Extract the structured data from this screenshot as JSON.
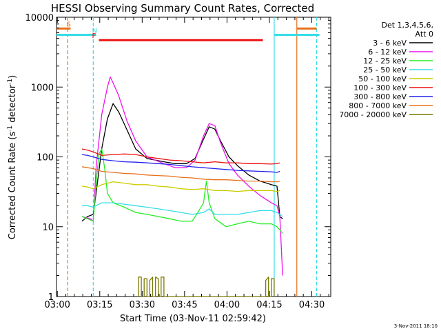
{
  "chart_data": {
    "type": "line",
    "title": "HESSI Observing Summary Count Rates, Corrected",
    "xlabel": "Start Time (03-Nov-11 02:59:42)",
    "ylabel_main": "Corrected Count Rate (s",
    "ylabel_sup1": "-1",
    "ylabel_mid": " detector",
    "ylabel_sup2": "-1",
    "ylabel_end": ")",
    "yscale": "log",
    "ylim": [
      1,
      10000
    ],
    "xlim_minutes": [
      0,
      97
    ],
    "x_tick_labels": [
      "03:00",
      "03:15",
      "03:30",
      "03:45",
      "04:00",
      "04:15",
      "04:30"
    ],
    "y_tick_labels": [
      "1",
      "10",
      "100",
      "1000",
      "10000"
    ],
    "legend_header": [
      "Det 1,3,4,5,6,",
      "Att 0"
    ],
    "legend_position": "right",
    "timestamp": "3-Nov-2011 18:10",
    "flags": [
      {
        "label": "S",
        "color": "#e8701a",
        "segments": [
          [
            0,
            5
          ],
          [
            85,
            92
          ]
        ],
        "level": 6900
      },
      {
        "label": "N",
        "color": "#33dde6",
        "segments": [
          [
            0,
            14
          ],
          [
            77,
            93
          ]
        ],
        "level": 5600
      },
      {
        "label": "F",
        "color": "#ee1111",
        "segments": [
          [
            15,
            73
          ]
        ],
        "level": 4700
      }
    ],
    "vlines": [
      {
        "minute": 4,
        "color": "#e8701a",
        "style": "dashed"
      },
      {
        "minute": 13,
        "color": "#33dde6",
        "style": "dashed"
      },
      {
        "minute": 77,
        "color": "#33dde6",
        "style": "solid"
      },
      {
        "minute": 85,
        "color": "#e8701a",
        "style": "solid"
      },
      {
        "minute": 92,
        "color": "#33dde6",
        "style": "dashed"
      }
    ],
    "series": [
      {
        "name": "3 - 6 keV",
        "color": "#000000",
        "points": [
          [
            9,
            12
          ],
          [
            11,
            14
          ],
          [
            13,
            15
          ],
          [
            14,
            30
          ],
          [
            16,
            130
          ],
          [
            18,
            350
          ],
          [
            20,
            580
          ],
          [
            22,
            440
          ],
          [
            25,
            240
          ],
          [
            28,
            130
          ],
          [
            32,
            95
          ],
          [
            38,
            85
          ],
          [
            42,
            80
          ],
          [
            46,
            80
          ],
          [
            49,
            95
          ],
          [
            52,
            180
          ],
          [
            54,
            270
          ],
          [
            56,
            250
          ],
          [
            58,
            170
          ],
          [
            61,
            100
          ],
          [
            64,
            75
          ],
          [
            68,
            55
          ],
          [
            72,
            45
          ],
          [
            76,
            40
          ],
          [
            78,
            38
          ],
          [
            79,
            14
          ],
          [
            80,
            13
          ]
        ]
      },
      {
        "name": "6 - 12 keV",
        "color": "#ee11ee",
        "points": [
          [
            9,
            14
          ],
          [
            12,
            13
          ],
          [
            13,
            12
          ],
          [
            14,
            70
          ],
          [
            16,
            400
          ],
          [
            18,
            1000
          ],
          [
            19,
            1400
          ],
          [
            20,
            1150
          ],
          [
            22,
            750
          ],
          [
            25,
            320
          ],
          [
            28,
            170
          ],
          [
            32,
            100
          ],
          [
            38,
            80
          ],
          [
            42,
            70
          ],
          [
            46,
            70
          ],
          [
            49,
            90
          ],
          [
            52,
            200
          ],
          [
            54,
            300
          ],
          [
            56,
            280
          ],
          [
            58,
            160
          ],
          [
            61,
            80
          ],
          [
            64,
            55
          ],
          [
            68,
            38
          ],
          [
            72,
            28
          ],
          [
            76,
            22
          ],
          [
            78,
            20
          ],
          [
            79,
            14
          ],
          [
            80,
            2
          ]
        ]
      },
      {
        "name": "12 - 25 keV",
        "color": "#22ee22",
        "points": [
          [
            9,
            14
          ],
          [
            11,
            13
          ],
          [
            13,
            12
          ],
          [
            14,
            40
          ],
          [
            15,
            110
          ],
          [
            16,
            130
          ],
          [
            17,
            70
          ],
          [
            18,
            30
          ],
          [
            20,
            22
          ],
          [
            24,
            19
          ],
          [
            28,
            16
          ],
          [
            32,
            15
          ],
          [
            36,
            14
          ],
          [
            40,
            13
          ],
          [
            44,
            12
          ],
          [
            48,
            12
          ],
          [
            50,
            16
          ],
          [
            52,
            22
          ],
          [
            53,
            45
          ],
          [
            54,
            22
          ],
          [
            56,
            13
          ],
          [
            60,
            10
          ],
          [
            64,
            11
          ],
          [
            68,
            12
          ],
          [
            72,
            11
          ],
          [
            76,
            11
          ],
          [
            78,
            10
          ],
          [
            79,
            9
          ],
          [
            80,
            8
          ]
        ]
      },
      {
        "name": "25 - 50 keV",
        "color": "#33dde6",
        "points": [
          [
            9,
            20
          ],
          [
            11,
            20
          ],
          [
            13,
            19
          ],
          [
            16,
            22
          ],
          [
            20,
            22
          ],
          [
            24,
            21
          ],
          [
            28,
            20
          ],
          [
            32,
            19
          ],
          [
            36,
            18
          ],
          [
            40,
            17
          ],
          [
            44,
            16
          ],
          [
            48,
            15
          ],
          [
            52,
            16
          ],
          [
            54,
            18
          ],
          [
            56,
            15
          ],
          [
            60,
            15
          ],
          [
            64,
            15
          ],
          [
            68,
            16
          ],
          [
            72,
            17
          ],
          [
            76,
            17
          ],
          [
            78,
            16
          ],
          [
            79,
            15
          ],
          [
            80,
            14
          ]
        ]
      },
      {
        "name": "50 - 100 keV",
        "color": "#cccc00",
        "points": [
          [
            9,
            38
          ],
          [
            11,
            37
          ],
          [
            13,
            35
          ],
          [
            16,
            40
          ],
          [
            20,
            44
          ],
          [
            24,
            42
          ],
          [
            28,
            40
          ],
          [
            32,
            40
          ],
          [
            36,
            38
          ],
          [
            40,
            37
          ],
          [
            44,
            35
          ],
          [
            48,
            34
          ],
          [
            52,
            35
          ],
          [
            56,
            33
          ],
          [
            60,
            33
          ],
          [
            64,
            32
          ],
          [
            68,
            33
          ],
          [
            72,
            33
          ],
          [
            76,
            33
          ],
          [
            78,
            32
          ],
          [
            79,
            33
          ]
        ]
      },
      {
        "name": "100 - 300 keV",
        "color": "#ee1111",
        "points": [
          [
            9,
            130
          ],
          [
            11,
            125
          ],
          [
            13,
            118
          ],
          [
            16,
            105
          ],
          [
            20,
            108
          ],
          [
            24,
            110
          ],
          [
            28,
            108
          ],
          [
            32,
            100
          ],
          [
            36,
            95
          ],
          [
            40,
            90
          ],
          [
            44,
            88
          ],
          [
            48,
            85
          ],
          [
            52,
            82
          ],
          [
            56,
            85
          ],
          [
            60,
            82
          ],
          [
            64,
            82
          ],
          [
            68,
            80
          ],
          [
            72,
            80
          ],
          [
            76,
            79
          ],
          [
            78,
            80
          ],
          [
            79,
            82
          ]
        ]
      },
      {
        "name": "300 - 800 keV",
        "color": "#2222ee",
        "points": [
          [
            9,
            108
          ],
          [
            11,
            105
          ],
          [
            13,
            100
          ],
          [
            16,
            92
          ],
          [
            20,
            88
          ],
          [
            24,
            85
          ],
          [
            28,
            84
          ],
          [
            32,
            82
          ],
          [
            36,
            80
          ],
          [
            40,
            78
          ],
          [
            44,
            75
          ],
          [
            48,
            72
          ],
          [
            52,
            70
          ],
          [
            56,
            68
          ],
          [
            60,
            66
          ],
          [
            64,
            64
          ],
          [
            68,
            63
          ],
          [
            72,
            62
          ],
          [
            76,
            61
          ],
          [
            78,
            60
          ],
          [
            79,
            62
          ]
        ]
      },
      {
        "name": "800 - 7000 keV",
        "color": "#e8701a",
        "points": [
          [
            9,
            72
          ],
          [
            11,
            70
          ],
          [
            13,
            68
          ],
          [
            16,
            62
          ],
          [
            20,
            60
          ],
          [
            24,
            58
          ],
          [
            28,
            57
          ],
          [
            32,
            55
          ],
          [
            36,
            54
          ],
          [
            40,
            53
          ],
          [
            44,
            51
          ],
          [
            48,
            50
          ],
          [
            52,
            48
          ],
          [
            56,
            47
          ],
          [
            60,
            47
          ],
          [
            64,
            46
          ],
          [
            68,
            45
          ],
          [
            72,
            45
          ],
          [
            76,
            44
          ],
          [
            78,
            44
          ],
          [
            79,
            45
          ]
        ]
      },
      {
        "name": "7000 - 20000 keV",
        "color": "#7a7a00",
        "points": [
          [
            29,
            1
          ],
          [
            29,
            1.9
          ],
          [
            30,
            1.9
          ],
          [
            30,
            1
          ],
          [
            31,
            1
          ],
          [
            31,
            1.8
          ],
          [
            32,
            1.8
          ],
          [
            32,
            1
          ],
          [
            33,
            1
          ],
          [
            33,
            1.7
          ],
          [
            34,
            1.9
          ],
          [
            34,
            1
          ],
          [
            35,
            1
          ],
          [
            35,
            1.9
          ],
          [
            36,
            1.8
          ],
          [
            36,
            1
          ],
          [
            37,
            1
          ],
          [
            37,
            1.9
          ],
          [
            38,
            1.9
          ],
          [
            38,
            1
          ],
          [
            74,
            1
          ],
          [
            74,
            1.7
          ],
          [
            75,
            1.9
          ],
          [
            75,
            1
          ],
          [
            76,
            1
          ],
          [
            76,
            1.8
          ],
          [
            77,
            1.8
          ],
          [
            77,
            1
          ]
        ]
      }
    ]
  }
}
